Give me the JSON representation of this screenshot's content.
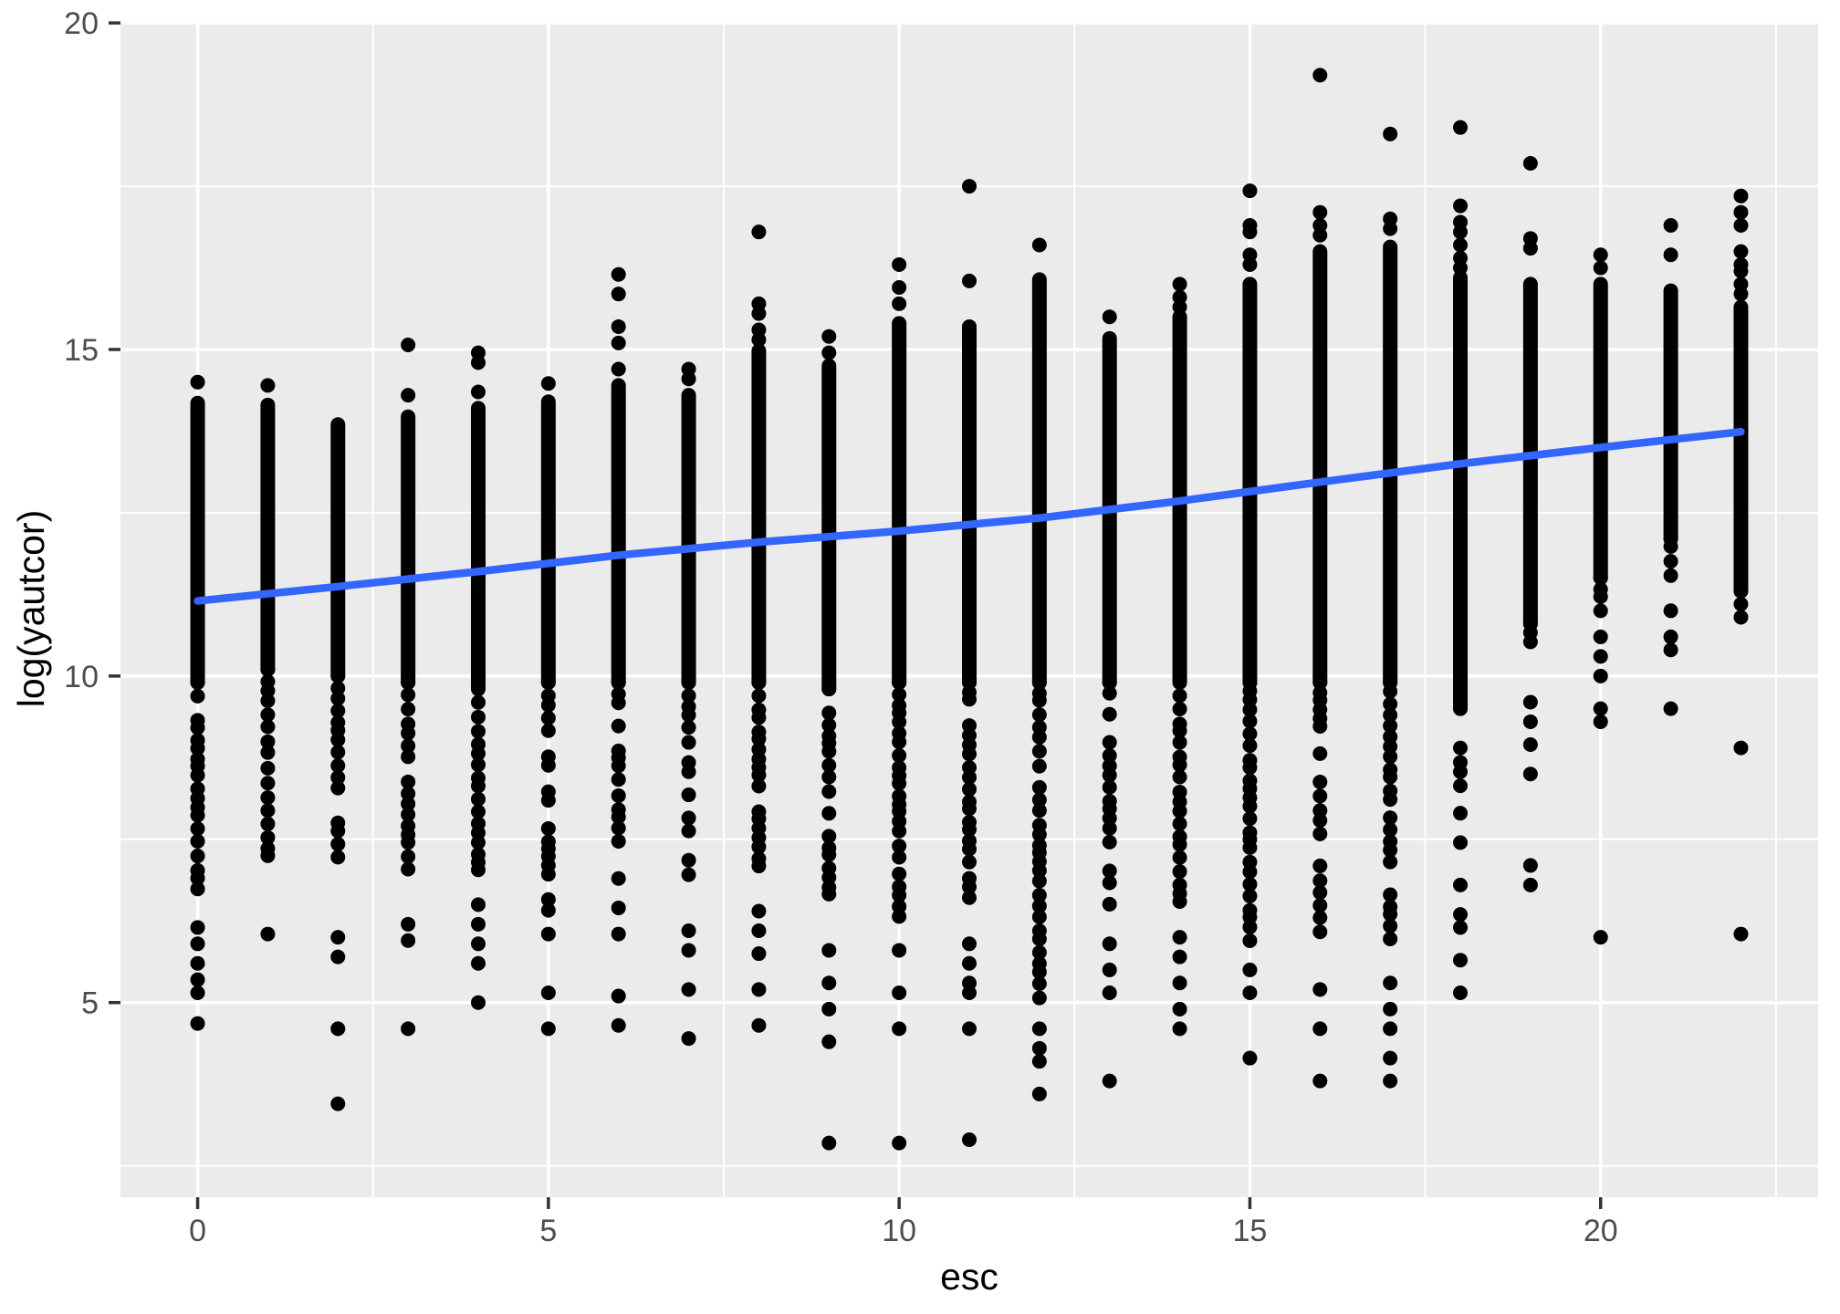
{
  "chart_data": {
    "type": "scatter",
    "title": "",
    "xlabel": "esc",
    "ylabel": "log(yautcor)",
    "x_ticks": [
      0,
      5,
      10,
      15,
      20
    ],
    "y_ticks": [
      5,
      10,
      15,
      20
    ],
    "x_minor": [
      2.5,
      7.5,
      12.5,
      17.5,
      22.5
    ],
    "y_minor": [
      2.5,
      7.5,
      12.5,
      17.5
    ],
    "xlim": [
      -1.1,
      23.1
    ],
    "ylim": [
      2.02,
      20.03
    ],
    "grid": true,
    "legend": "none",
    "panel_bg": "#EBEBEB",
    "grid_color": "#FFFFFF",
    "point_color": "#000000",
    "smooth_color": "#3366FF",
    "tick_color": "#333333",
    "tick_label_color": "#4D4D4D",
    "axis_title_color": "#000000",
    "smooth_line": [
      {
        "x": 0,
        "y": 11.15
      },
      {
        "x": 2,
        "y": 11.37
      },
      {
        "x": 4,
        "y": 11.6
      },
      {
        "x": 6,
        "y": 11.85
      },
      {
        "x": 8,
        "y": 12.05
      },
      {
        "x": 10,
        "y": 12.22
      },
      {
        "x": 12,
        "y": 12.42
      },
      {
        "x": 14,
        "y": 12.68
      },
      {
        "x": 16,
        "y": 12.97
      },
      {
        "x": 18,
        "y": 13.25
      },
      {
        "x": 20,
        "y": 13.5
      },
      {
        "x": 22,
        "y": 13.74
      }
    ],
    "columns": [
      {
        "x": 0,
        "upper_dots": [
          14.5
        ],
        "dense": [
          14.18,
          9.9
        ],
        "tail": [
          9.9,
          6.6
        ],
        "lower_dots": [
          6.15,
          5.9,
          5.6,
          5.35,
          5.15,
          4.68
        ]
      },
      {
        "x": 1,
        "upper_dots": [
          14.45
        ],
        "dense": [
          14.15,
          10.1
        ],
        "tail": [
          10.1,
          7.2
        ],
        "lower_dots": [
          6.05
        ]
      },
      {
        "x": 2,
        "upper_dots": [],
        "dense": [
          13.85,
          10.0
        ],
        "tail": [
          10.0,
          7.0
        ],
        "lower_dots": [
          6.0,
          5.7,
          4.6,
          3.45
        ]
      },
      {
        "x": 3,
        "upper_dots": [
          15.07,
          14.3
        ],
        "dense": [
          13.97,
          9.9
        ],
        "tail": [
          9.9,
          6.9
        ],
        "lower_dots": [
          6.2,
          5.95,
          4.6
        ]
      },
      {
        "x": 4,
        "upper_dots": [
          14.95,
          14.8,
          14.35
        ],
        "dense": [
          14.1,
          9.8
        ],
        "tail": [
          9.8,
          7.0
        ],
        "lower_dots": [
          6.5,
          6.2,
          5.9,
          5.6,
          5.0
        ]
      },
      {
        "x": 5,
        "upper_dots": [
          14.48
        ],
        "dense": [
          14.2,
          9.9
        ],
        "tail": [
          9.9,
          6.3
        ],
        "lower_dots": [
          6.05,
          5.15,
          4.6
        ]
      },
      {
        "x": 6,
        "upper_dots": [
          16.15,
          15.85,
          15.35,
          15.1,
          14.7
        ],
        "dense": [
          14.45,
          9.9
        ],
        "tail": [
          9.9,
          7.3
        ],
        "lower_dots": [
          6.9,
          6.45,
          6.05,
          5.1,
          4.65
        ]
      },
      {
        "x": 7,
        "upper_dots": [
          14.7,
          14.55
        ],
        "dense": [
          14.3,
          9.9
        ],
        "tail": [
          9.9,
          6.9
        ],
        "lower_dots": [
          6.1,
          5.8,
          5.2,
          4.45
        ]
      },
      {
        "x": 8,
        "upper_dots": [
          16.8,
          15.7,
          15.55,
          15.3,
          15.15
        ],
        "dense": [
          14.98,
          9.9
        ],
        "tail": [
          9.9,
          7.0
        ],
        "lower_dots": [
          6.4,
          6.1,
          5.75,
          5.2,
          4.65
        ]
      },
      {
        "x": 9,
        "upper_dots": [
          15.2,
          14.95
        ],
        "dense": [
          14.75,
          9.8
        ],
        "tail": [
          9.8,
          6.5
        ],
        "lower_dots": [
          5.8,
          5.3,
          4.9,
          4.4,
          2.85
        ]
      },
      {
        "x": 10,
        "upper_dots": [
          16.3,
          15.95,
          15.7
        ],
        "dense": [
          15.4,
          9.9
        ],
        "tail": [
          9.9,
          6.3
        ],
        "lower_dots": [
          5.8,
          5.15,
          4.6,
          2.85
        ]
      },
      {
        "x": 11,
        "upper_dots": [
          17.5,
          16.05
        ],
        "dense": [
          15.35,
          9.9
        ],
        "tail": [
          9.9,
          6.5
        ],
        "lower_dots": [
          5.9,
          5.6,
          5.3,
          5.15,
          4.6,
          2.9
        ]
      },
      {
        "x": 12,
        "upper_dots": [
          16.6
        ],
        "dense": [
          16.07,
          9.9
        ],
        "tail": [
          9.9,
          5.0
        ],
        "lower_dots": [
          4.6,
          4.3,
          4.1,
          3.6
        ]
      },
      {
        "x": 13,
        "upper_dots": [
          15.5
        ],
        "dense": [
          15.17,
          9.9
        ],
        "tail": [
          9.9,
          6.2
        ],
        "lower_dots": [
          5.9,
          5.5,
          5.15,
          3.8
        ]
      },
      {
        "x": 14,
        "upper_dots": [
          16.0,
          15.8,
          15.65
        ],
        "dense": [
          15.5,
          9.9
        ],
        "tail": [
          9.9,
          6.5
        ],
        "lower_dots": [
          6.0,
          5.7,
          5.3,
          4.9,
          4.6
        ]
      },
      {
        "x": 15,
        "upper_dots": [
          17.43,
          16.9,
          16.8,
          16.45,
          16.3
        ],
        "dense": [
          16.0,
          9.9
        ],
        "tail": [
          9.9,
          5.9
        ],
        "lower_dots": [
          5.5,
          5.15,
          4.15
        ]
      },
      {
        "x": 16,
        "upper_dots": [
          19.2,
          17.1,
          16.9,
          16.75
        ],
        "dense": [
          16.5,
          9.9
        ],
        "tail": [
          9.9,
          6.0
        ],
        "lower_dots": [
          5.2,
          4.6,
          3.8
        ]
      },
      {
        "x": 17,
        "upper_dots": [
          18.3,
          17.0,
          16.85
        ],
        "dense": [
          16.57,
          9.9
        ],
        "tail": [
          9.9,
          5.8
        ],
        "lower_dots": [
          5.3,
          4.9,
          4.6,
          4.15,
          3.8
        ]
      },
      {
        "x": 18,
        "upper_dots": [
          18.4,
          17.2,
          16.95,
          16.8,
          16.6,
          16.4,
          16.25
        ],
        "dense": [
          16.1,
          9.5
        ],
        "tail": [
          9.5,
          8.2
        ],
        "lower_dots": [
          7.9,
          7.45,
          6.8,
          6.35,
          6.15,
          5.65,
          5.15
        ]
      },
      {
        "x": 19,
        "upper_dots": [
          17.85,
          16.7,
          16.55
        ],
        "dense": [
          16.0,
          10.8
        ],
        "tail": [
          10.8,
          10.3
        ],
        "lower_dots": [
          9.6,
          9.3,
          8.95,
          8.5,
          7.1,
          6.8
        ]
      },
      {
        "x": 20,
        "upper_dots": [
          16.45,
          16.25
        ],
        "dense": [
          16.0,
          11.5
        ],
        "tail": [
          11.5,
          10.9
        ],
        "lower_dots": [
          10.6,
          10.3,
          10.0,
          9.5,
          9.3,
          6.0
        ]
      },
      {
        "x": 21,
        "upper_dots": [
          16.9,
          16.45
        ],
        "dense": [
          15.9,
          12.1
        ],
        "tail": [
          12.1,
          11.4
        ],
        "lower_dots": [
          11.0,
          10.6,
          10.4,
          9.5
        ]
      },
      {
        "x": 22,
        "upper_dots": [
          17.35,
          17.1,
          16.9,
          16.5,
          16.3,
          16.2,
          16.0,
          15.85
        ],
        "dense": [
          15.65,
          11.3
        ],
        "tail": [
          11.3,
          11.0
        ],
        "lower_dots": [
          10.9,
          8.9,
          6.05
        ]
      }
    ]
  },
  "labels": {
    "x_axis_title": "esc",
    "y_axis_title": "log(yautcor)"
  }
}
